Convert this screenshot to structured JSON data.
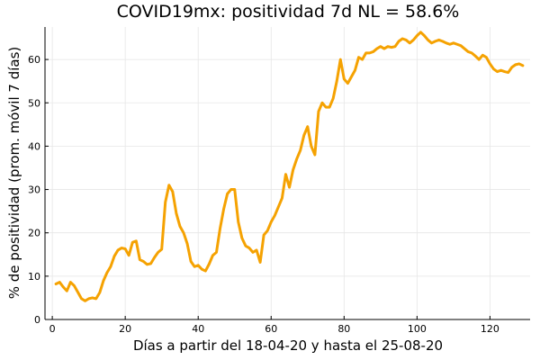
{
  "chart_data": {
    "type": "line",
    "title": "COVID19mx: positividad 7d NL = 58.6%",
    "xlabel": "Días a partir del 18-04-20 y hasta el 25-08-20",
    "ylabel": "% de positividad (prom. móvil 7 días)",
    "xlim": [
      -2,
      131
    ],
    "ylim": [
      0,
      67.5
    ],
    "xticks": [
      0,
      20,
      40,
      60,
      80,
      100,
      120
    ],
    "yticks": [
      0,
      10,
      20,
      30,
      40,
      50,
      60
    ],
    "grid": true,
    "legend": "none",
    "series": [
      {
        "color": "#f5a202",
        "x": [
          1,
          2,
          3,
          4,
          5,
          6,
          7,
          8,
          9,
          10,
          11,
          12,
          13,
          14,
          15,
          16,
          17,
          18,
          19,
          20,
          21,
          22,
          23,
          24,
          25,
          26,
          27,
          28,
          29,
          30,
          31,
          32,
          33,
          34,
          35,
          36,
          37,
          38,
          39,
          40,
          41,
          42,
          43,
          44,
          45,
          46,
          47,
          48,
          49,
          50,
          51,
          52,
          53,
          54,
          55,
          56,
          57,
          58,
          59,
          60,
          61,
          62,
          63,
          64,
          65,
          66,
          67,
          68,
          69,
          70,
          71,
          72,
          73,
          74,
          75,
          76,
          77,
          78,
          79,
          80,
          81,
          82,
          83,
          84,
          85,
          86,
          87,
          88,
          89,
          90,
          91,
          92,
          93,
          94,
          95,
          96,
          97,
          98,
          99,
          100,
          101,
          102,
          103,
          104,
          105,
          106,
          107,
          108,
          109,
          110,
          111,
          112,
          113,
          114,
          115,
          116,
          117,
          118,
          119,
          120,
          121,
          122,
          123,
          124,
          125,
          126,
          127,
          128,
          129
        ],
        "y": [
          8.2,
          8.6,
          7.5,
          6.6,
          8.6,
          7.8,
          6.3,
          4.8,
          4.3,
          4.8,
          5.0,
          4.8,
          6.2,
          8.9,
          10.8,
          12.2,
          14.6,
          16.0,
          16.5,
          16.3,
          14.8,
          17.8,
          18.1,
          13.8,
          13.4,
          12.7,
          12.9,
          14.3,
          15.5,
          16.2,
          27.1,
          31.0,
          29.5,
          24.5,
          21.5,
          20.0,
          17.5,
          13.4,
          12.2,
          12.5,
          11.6,
          11.2,
          12.8,
          14.8,
          15.5,
          21.0,
          25.5,
          29.0,
          30.0,
          30.0,
          22.5,
          18.8,
          17.0,
          16.5,
          15.5,
          16.0,
          13.2,
          19.5,
          20.5,
          22.5,
          24.0,
          26.0,
          28.0,
          33.5,
          30.5,
          34.5,
          37.0,
          39.0,
          42.5,
          44.5,
          40.0,
          38.0,
          48.0,
          50.0,
          49.0,
          49.0,
          51.0,
          55.0,
          60.0,
          55.5,
          54.5,
          56.0,
          57.5,
          60.5,
          60.0,
          61.5,
          61.5,
          61.8,
          62.5,
          63.0,
          62.5,
          63.0,
          62.8,
          63.0,
          64.2,
          64.8,
          64.5,
          63.8,
          64.5,
          65.5,
          66.3,
          65.5,
          64.5,
          63.8,
          64.2,
          64.5,
          64.2,
          63.8,
          63.5,
          63.8,
          63.5,
          63.2,
          62.5,
          61.8,
          61.5,
          60.8,
          60.0,
          61.0,
          60.5,
          59.0,
          57.8,
          57.2,
          57.5,
          57.2,
          57.0,
          58.2,
          58.8,
          59.0,
          58.6
        ]
      }
    ]
  }
}
